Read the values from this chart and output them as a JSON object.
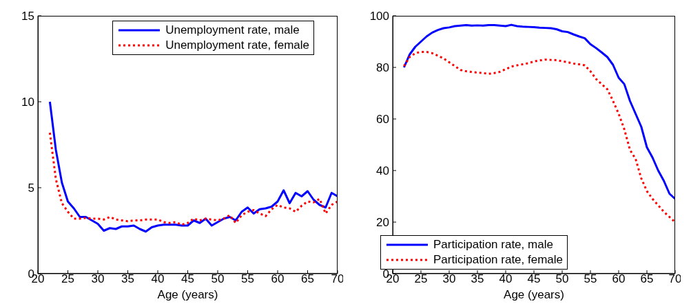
{
  "chart_data": [
    {
      "type": "line",
      "xlabel": "Age (years)",
      "x": [
        22,
        23,
        24,
        25,
        26,
        27,
        28,
        29,
        30,
        31,
        32,
        33,
        34,
        35,
        36,
        37,
        38,
        39,
        40,
        41,
        42,
        43,
        44,
        45,
        46,
        47,
        48,
        49,
        50,
        51,
        52,
        53,
        54,
        55,
        56,
        57,
        58,
        59,
        60,
        61,
        62,
        63,
        64,
        65,
        66,
        67,
        68,
        69,
        70
      ],
      "xlim": [
        20,
        70
      ],
      "xticks": [
        20,
        25,
        30,
        35,
        40,
        45,
        50,
        55,
        60,
        65,
        70
      ],
      "ylim": [
        0,
        15
      ],
      "yticks": [
        0,
        5,
        10,
        15
      ],
      "grid": false,
      "legend": "top right",
      "series": [
        {
          "name": "Unemployment rate, male",
          "color": "#0000ff",
          "line_style": "solid",
          "values": [
            10,
            7.2,
            5.3,
            4.2,
            3.8,
            3.3,
            3.3,
            3.1,
            2.9,
            2.5,
            2.65,
            2.6,
            2.75,
            2.75,
            2.8,
            2.6,
            2.45,
            2.7,
            2.8,
            2.85,
            2.85,
            2.85,
            2.8,
            2.8,
            3.1,
            2.95,
            3.2,
            2.8,
            3.0,
            3.2,
            3.3,
            3.1,
            3.6,
            3.85,
            3.5,
            3.75,
            3.8,
            3.9,
            4.2,
            4.85,
            4.1,
            4.7,
            4.5,
            4.8,
            4.3,
            4.0,
            3.85,
            4.7,
            4.5
          ]
        },
        {
          "name": "Unemployment rate, female",
          "color": "#ff0000",
          "line_style": "dotted",
          "values": [
            8.2,
            5.5,
            4.1,
            3.6,
            3.2,
            3.2,
            3.25,
            3.2,
            3.2,
            3.15,
            3.3,
            3.15,
            3.1,
            3.05,
            3.1,
            3.1,
            3.15,
            3.15,
            3.15,
            3.0,
            2.95,
            3.0,
            2.85,
            2.95,
            3.2,
            3.1,
            3.2,
            3.15,
            3.1,
            3.2,
            3.4,
            2.95,
            3.4,
            3.6,
            3.7,
            3.5,
            3.35,
            3.75,
            4.0,
            3.85,
            3.8,
            3.6,
            3.95,
            4.2,
            4.15,
            4.35,
            3.5,
            4.0,
            4.2
          ]
        }
      ]
    },
    {
      "type": "line",
      "xlabel": "Age (years)",
      "x": [
        22,
        23,
        24,
        25,
        26,
        27,
        28,
        29,
        30,
        31,
        32,
        33,
        34,
        35,
        36,
        37,
        38,
        39,
        40,
        41,
        42,
        43,
        44,
        45,
        46,
        47,
        48,
        49,
        50,
        51,
        52,
        53,
        54,
        55,
        56,
        57,
        58,
        59,
        60,
        61,
        62,
        63,
        64,
        65,
        66,
        67,
        68,
        69,
        70
      ],
      "xlim": [
        20,
        70
      ],
      "xticks": [
        20,
        25,
        30,
        35,
        40,
        45,
        50,
        55,
        60,
        65,
        70
      ],
      "ylim": [
        0,
        100
      ],
      "yticks": [
        0,
        20,
        40,
        60,
        80,
        100
      ],
      "grid": false,
      "legend": "bottom left",
      "series": [
        {
          "name": "Participation rate, male",
          "color": "#0000ff",
          "line_style": "solid",
          "values": [
            80,
            85,
            88,
            90,
            92,
            93.5,
            94.5,
            95.2,
            95.5,
            96,
            96.2,
            96.4,
            96.2,
            96.3,
            96.2,
            96.4,
            96.4,
            96.2,
            96,
            96.5,
            96,
            95.8,
            95.7,
            95.6,
            95.4,
            95.3,
            95.2,
            94.8,
            94,
            93.7,
            92.8,
            92,
            91.3,
            89,
            87.5,
            85.8,
            84,
            81,
            76,
            73.5,
            67,
            62,
            57,
            49,
            45,
            40,
            36,
            31,
            29
          ]
        },
        {
          "name": "Participation rate, female",
          "color": "#ff0000",
          "line_style": "dotted",
          "values": [
            80.5,
            84,
            85.5,
            86,
            86,
            85.5,
            84.5,
            83.5,
            82,
            80.5,
            79,
            78.5,
            78.2,
            78,
            77.8,
            77.5,
            77.8,
            78.3,
            79.3,
            80.3,
            80.8,
            81.2,
            81.6,
            82.3,
            82.7,
            83,
            82.9,
            82.8,
            82.4,
            82,
            81.5,
            81.2,
            80.8,
            78.5,
            75.5,
            73.5,
            71.5,
            67,
            62,
            56,
            48,
            44.5,
            37,
            32,
            29,
            26.5,
            24,
            22,
            20
          ]
        }
      ]
    }
  ]
}
